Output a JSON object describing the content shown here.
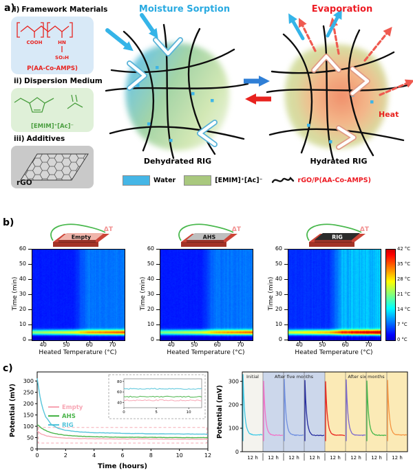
{
  "panel_a": {
    "label": "a)",
    "materials": [
      {
        "index": "i)",
        "title": "Framework Materials",
        "name": "P(AA-Co-AMPS)",
        "atom_labels": [
          "COOH",
          "HN",
          "SO₃H"
        ]
      },
      {
        "index": "ii)",
        "title": "Dispersion Medium",
        "name": "[EMIM]⁺[Ac]⁻"
      },
      {
        "index": "iii)",
        "title": "Additives",
        "name": "rGO"
      }
    ],
    "process_labels": {
      "sorption": "Moisture Sorption",
      "evaporation": "Evaporation",
      "heat": "Heat"
    },
    "states": {
      "left": "Dehydrated RIG",
      "right": "Hydrated RIG"
    },
    "legend": [
      {
        "label": "Water",
        "swatch_color": "#45b6e6"
      },
      {
        "label": "[EMIM]⁺[Ac]⁻",
        "swatch_color": "#a9c87e"
      },
      {
        "label": "rGO/P(AA-Co-AMPS)",
        "swatch_color": "#141414",
        "label_color": "#ed1c24",
        "swatch_style": "polymer-line"
      }
    ]
  },
  "panel_b": {
    "label": "b)",
    "devices": [
      {
        "label": "Empty",
        "slab_color": "#f0b4aa",
        "label_color": "#111111",
        "delta_t": "ΔT"
      },
      {
        "label": "AHS",
        "slab_color": "#bfbfbf",
        "label_color": "#111111",
        "delta_t": "ΔT"
      },
      {
        "label": "RIG",
        "slab_color": "#2b2b2b",
        "label_color": "#ffffff",
        "delta_t": "ΔT"
      }
    ],
    "ylabel": "Time (min)",
    "xlabel": "Heated Temperature (°C)",
    "y_ticks": [
      0,
      10,
      20,
      30,
      40,
      50,
      60
    ],
    "x_ticks": [
      40,
      50,
      60,
      70
    ],
    "colorbar_labels": [
      "42 °C",
      "35 °C",
      "28 °C",
      "21 °C",
      "14 °C",
      "7 °C",
      "0 °C"
    ]
  },
  "panel_c": {
    "label": "c)"
  },
  "chart_data": [
    {
      "id": "heatmap-empty",
      "canvas": "hm0",
      "type": "heatmap",
      "title": "Empty",
      "xlabel": "Heated Temperature (°C)",
      "ylabel": "Time (min)",
      "x_range": [
        35,
        75
      ],
      "y_range": [
        0,
        60
      ],
      "value_range_c": [
        0,
        42
      ],
      "baseline_c": 3.5,
      "high_temp_baseline_c": 8,
      "pulse_time_min": [
        3,
        7
      ],
      "pulse_peak_c": 26,
      "streak_intensity": 0.6
    },
    {
      "id": "heatmap-ahs",
      "canvas": "hm1",
      "type": "heatmap",
      "title": "AHS",
      "xlabel": "Heated Temperature (°C)",
      "ylabel": "Time (min)",
      "x_range": [
        35,
        75
      ],
      "y_range": [
        0,
        60
      ],
      "value_range_c": [
        0,
        42
      ],
      "baseline_c": 3.5,
      "high_temp_baseline_c": 8,
      "pulse_time_min": [
        3,
        7
      ],
      "pulse_peak_c": 25,
      "streak_intensity": 0.6
    },
    {
      "id": "heatmap-rig",
      "canvas": "hm2",
      "type": "heatmap",
      "title": "RIG",
      "xlabel": "Heated Temperature (°C)",
      "ylabel": "Time (min)",
      "x_range": [
        35,
        75
      ],
      "y_range": [
        0,
        60
      ],
      "value_range_c": [
        0,
        42
      ],
      "baseline_c": 4.5,
      "high_temp_baseline_c": 11.5,
      "pulse_time_min": [
        3,
        7
      ],
      "pulse_peak_c": 30,
      "streak_intensity": 1.3
    },
    {
      "id": "stability",
      "type": "line",
      "xlabel": "Time (hours)",
      "ylabel": "Potential (mV)",
      "x_max": 12,
      "y_max": 340,
      "x_ticks": [
        0,
        2,
        4,
        6,
        8,
        10,
        12
      ],
      "y_ticks": [
        0,
        50,
        100,
        150,
        200,
        250,
        300
      ],
      "series": [
        {
          "name": "Empty",
          "color": "#f7a6b4",
          "points": [
            [
              0,
              78
            ],
            [
              0.3,
              66
            ],
            [
              0.7,
              57
            ],
            [
              1.2,
              52
            ],
            [
              2,
              48
            ],
            [
              3,
              46
            ],
            [
              4,
              45
            ],
            [
              6,
              44
            ],
            [
              8,
              44
            ],
            [
              10,
              43
            ],
            [
              12,
              43
            ]
          ]
        },
        {
          "name": "AHS",
          "color": "#4bb54b",
          "points": [
            [
              0,
              108
            ],
            [
              0.3,
              92
            ],
            [
              0.7,
              78
            ],
            [
              1.2,
              68
            ],
            [
              2,
              60
            ],
            [
              3,
              56
            ],
            [
              4,
              54
            ],
            [
              6,
              52
            ],
            [
              8,
              51
            ],
            [
              10,
              50
            ],
            [
              12,
              50
            ]
          ]
        },
        {
          "name": "RIG",
          "color": "#55c4da",
          "points": [
            [
              0,
              312
            ],
            [
              0.15,
              248
            ],
            [
              0.35,
              185
            ],
            [
              0.6,
              142
            ],
            [
              1,
              108
            ],
            [
              1.5,
              90
            ],
            [
              2,
              82
            ],
            [
              3,
              75
            ],
            [
              4,
              72
            ],
            [
              6,
              69
            ],
            [
              8,
              67
            ],
            [
              10,
              66
            ],
            [
              12,
              65
            ]
          ]
        }
      ],
      "inset": {
        "y_min": 30,
        "y_max": 85,
        "y_ticks": [
          40,
          60,
          80
        ],
        "x_ticks": [
          0,
          5,
          10
        ],
        "levels": {
          "Empty": 44,
          "AHS": 51,
          "RIG": 66
        }
      }
    },
    {
      "id": "longterm",
      "type": "line-cycles",
      "ylabel": "Potential (mV)",
      "y_max": 340,
      "y_ticks": [
        0,
        100,
        200,
        300
      ],
      "cycle_label": "12 h",
      "regions": [
        {
          "label": "Initial",
          "cycles": 1,
          "bg": "#f4f3ee"
        },
        {
          "label": "After five months",
          "cycles": 3,
          "bg": "#ccd7eb"
        },
        {
          "label": "After six months",
          "cycles": 4,
          "bg": "#fbeab6"
        }
      ],
      "cycles": [
        {
          "color": "#3ec9e6",
          "peak": 330,
          "rest": 72
        },
        {
          "color": "#f272c8",
          "peak": 302,
          "rest": 70
        },
        {
          "color": "#6f8fe0",
          "peak": 310,
          "rest": 70
        },
        {
          "color": "#232a9e",
          "peak": 305,
          "rest": 69
        },
        {
          "color": "#e8231f",
          "peak": 300,
          "rest": 70
        },
        {
          "color": "#7b68ce",
          "peak": 308,
          "rest": 70
        },
        {
          "color": "#43b649",
          "peak": 303,
          "rest": 70
        },
        {
          "color": "#f59440",
          "peak": 306,
          "rest": 71
        }
      ]
    }
  ]
}
